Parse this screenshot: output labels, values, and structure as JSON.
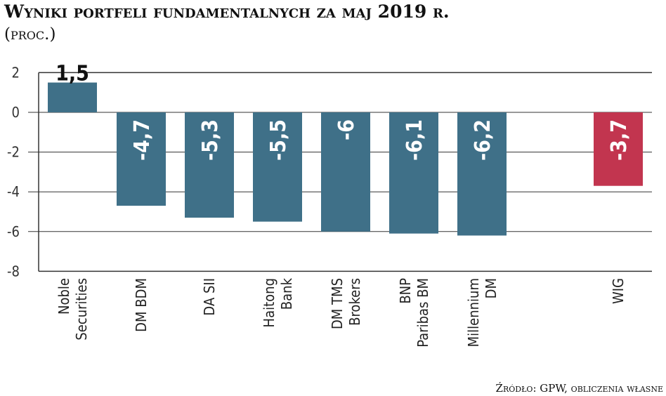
{
  "chart_data": {
    "type": "bar",
    "title": "Wyniki portfeli fundamentalnych za maj 2019 r.",
    "subtitle": "(proc.)",
    "source": "Źródło: GPW, obliczenia własne",
    "categories": [
      [
        "Noble",
        "Securities"
      ],
      [
        "DM BDM"
      ],
      [
        "DA SII"
      ],
      [
        "Haitong",
        "Bank"
      ],
      [
        "DM TMS",
        "Brokers"
      ],
      [
        "BNP",
        "Paribas BM"
      ],
      [
        "Millennium",
        "DM"
      ],
      [
        "WIG"
      ]
    ],
    "values": [
      1.5,
      -4.7,
      -5.3,
      -5.5,
      -6,
      -6.1,
      -6.2,
      -3.7
    ],
    "value_labels": [
      "1,5",
      "-4,7",
      "-5,3",
      "-5,5",
      "-6",
      "-6,1",
      "-6,2",
      "-3,7"
    ],
    "yticks": [
      "2",
      "0",
      "-2",
      "-4",
      "-6",
      "-8"
    ],
    "ytick_values": [
      2,
      0,
      -2,
      -4,
      -6,
      -8
    ],
    "ylim": [
      -8,
      2
    ],
    "colors": {
      "portfolio": "#3f7088",
      "benchmark": "#c2354f"
    },
    "xlabel": "",
    "ylabel": ""
  }
}
